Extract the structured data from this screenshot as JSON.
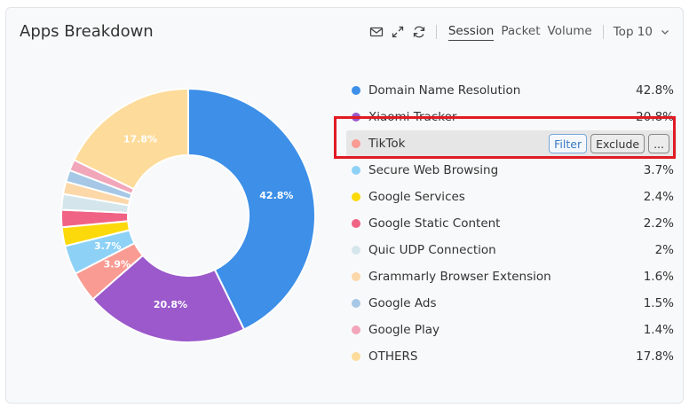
{
  "widget": {
    "title": "Apps Breakdown"
  },
  "toolbar": {
    "icons": [
      "mail-icon",
      "expand-icon",
      "refresh-icon"
    ],
    "tabs": [
      {
        "label": "Session",
        "active": true
      },
      {
        "label": "Packet",
        "active": false
      },
      {
        "label": "Volume",
        "active": false
      }
    ],
    "top_select": "Top 10"
  },
  "row_actions": {
    "filter": "Filter",
    "exclude": "Exclude",
    "more": "..."
  },
  "chart_data": {
    "type": "pie",
    "donut": true,
    "categories": [
      "Domain Name Resolution",
      "Xiaomi Tracker",
      "TikTok",
      "Secure Web Browsing",
      "Google Services",
      "Google Static Content",
      "Quic UDP Connection",
      "Grammarly Browser Extension",
      "Google Ads",
      "Google Play",
      "OTHERS"
    ],
    "values": [
      42.8,
      20.8,
      3.9,
      3.7,
      2.4,
      2.2,
      2,
      1.6,
      1.5,
      1.4,
      17.8
    ],
    "value_labels": [
      "42.8%",
      "20.8%",
      "3.9%",
      "3.7%",
      "2.4%",
      "2.2%",
      "2%",
      "1.6%",
      "1.5%",
      "1.4%",
      "17.8%"
    ],
    "colors": [
      "#3d8fe8",
      "#9b59cc",
      "#f99b93",
      "#8ed1f7",
      "#fcd90a",
      "#f06384",
      "#d4e6ec",
      "#fcd7a8",
      "#a6c8e6",
      "#f2a6ba",
      "#fddb9a"
    ],
    "slice_labels_shown": [
      "42.8%",
      "20.8%",
      "3.9%",
      "3.7%",
      "17.8%"
    ],
    "legend_position": "right",
    "hovered": "TikTok"
  }
}
